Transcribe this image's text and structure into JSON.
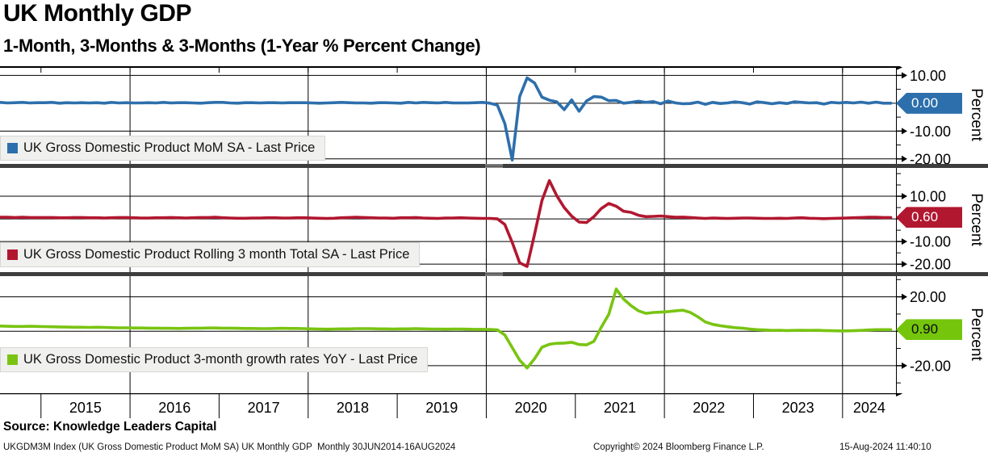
{
  "header": {
    "title": "UK Monthly GDP",
    "subtitle": "1-Month, 3-Months & 3-Months (1-Year % Percent Change)"
  },
  "axis": {
    "unit_label": "Percent",
    "years": [
      2015,
      2016,
      2017,
      2018,
      2019,
      2020,
      2021,
      2022,
      2023,
      2024
    ],
    "gridline_years": [
      2016,
      2018,
      2020,
      2022,
      2024
    ],
    "x_start_decimal": 2014.54,
    "x_end_decimal": 2024.6,
    "range_note": "30JUN2014-16AUG2024"
  },
  "chart_data": [
    {
      "type": "line",
      "name": "mom",
      "legend": "UK Gross Domestic Product MoM SA - Last Price",
      "color": "#2d6fac",
      "badge": {
        "value": "0.00",
        "bg": "#2d6fac",
        "text_color": "#ffffff"
      },
      "ylim": [
        13.3,
        -21.8
      ],
      "yticks": [
        10,
        0,
        -10,
        -20
      ],
      "minor_step": 5,
      "ylabel": "Percent",
      "start": {
        "year": 2014,
        "month": 7
      },
      "values": [
        0.3,
        0.1,
        0.2,
        0.3,
        0.1,
        0.2,
        0.2,
        0.3,
        0.0,
        0.2,
        0.1,
        0.2,
        0.1,
        0.2,
        0.0,
        0.3,
        0.1,
        0.2,
        0.1,
        0.1,
        0.2,
        0.1,
        0.3,
        0.1,
        0.2,
        0.2,
        0.1,
        0.0,
        0.2,
        0.3,
        0.3,
        0.1,
        0.0,
        0.2,
        0.2,
        0.1,
        0.2,
        0.2,
        0.1,
        0.2,
        0.2,
        0.2,
        0.1,
        0.0,
        0.1,
        0.2,
        0.3,
        0.2,
        0.1,
        0.1,
        0.0,
        0.2,
        0.2,
        0.1,
        0.0,
        0.3,
        0.1,
        0.3,
        0.2,
        0.1,
        0.3,
        0.1,
        0.1,
        0.1,
        0.2,
        0.3,
        0.0,
        -0.7,
        -7.3,
        -20.4,
        2.4,
        9.1,
        7.3,
        2.2,
        1.1,
        0.5,
        -2.3,
        1.2,
        -2.9,
        0.8,
        2.4,
        2.2,
        0.9,
        1.0,
        0.0,
        0.3,
        0.7,
        0.3,
        0.6,
        -0.2,
        0.8,
        0.1,
        -0.2,
        -0.1,
        0.4,
        -0.4,
        0.3,
        -0.1,
        0.1,
        0.5,
        0.2,
        -0.3,
        0.5,
        0.2,
        -0.2,
        0.2,
        -0.1,
        0.5,
        0.3,
        0.1,
        0.2,
        -0.3,
        0.3,
        0.1,
        0.3,
        0.1,
        0.4,
        0.0,
        0.4,
        0.0,
        0.0
      ]
    },
    {
      "type": "line",
      "name": "rolling-3-month",
      "legend": "UK Gross Domestic Product Rolling 3 month Total SA - Last Price",
      "color": "#b21730",
      "badge": {
        "value": "0.60",
        "bg": "#b21730",
        "text_color": "#ffffff"
      },
      "ylim": [
        22.5,
        -23.5
      ],
      "yticks": [
        10,
        0,
        -10,
        -20
      ],
      "minor_step": 5,
      "ylabel": "Percent",
      "start": {
        "year": 2014,
        "month": 7
      },
      "values": [
        0.7,
        0.7,
        0.6,
        0.7,
        0.6,
        0.6,
        0.6,
        0.6,
        0.5,
        0.5,
        0.6,
        0.6,
        0.5,
        0.5,
        0.4,
        0.5,
        0.6,
        0.6,
        0.5,
        0.4,
        0.4,
        0.5,
        0.5,
        0.6,
        0.5,
        0.4,
        0.5,
        0.6,
        0.6,
        0.7,
        0.5,
        0.4,
        0.3,
        0.3,
        0.4,
        0.4,
        0.5,
        0.5,
        0.4,
        0.4,
        0.5,
        0.5,
        0.4,
        0.3,
        0.2,
        0.3,
        0.5,
        0.6,
        0.7,
        0.6,
        0.5,
        0.4,
        0.4,
        0.3,
        0.5,
        0.5,
        0.6,
        0.4,
        0.3,
        0.2,
        0.4,
        0.4,
        0.5,
        0.4,
        0.3,
        0.2,
        0.2,
        0.0,
        -2.5,
        -10.4,
        -19.4,
        -21.0,
        -6.9,
        8.1,
        16.9,
        10.2,
        5.0,
        1.2,
        -1.4,
        -1.6,
        1.0,
        4.6,
        6.8,
        5.6,
        3.4,
        2.9,
        1.6,
        1.0,
        1.1,
        1.3,
        1.0,
        0.7,
        0.8,
        0.6,
        0.4,
        0.2,
        0.4,
        0.3,
        0.2,
        0.3,
        0.4,
        0.4,
        0.3,
        0.2,
        0.2,
        0.3,
        0.2,
        0.4,
        0.5,
        0.3,
        0.2,
        0.1,
        0.2,
        0.3,
        0.4,
        0.5,
        0.6,
        0.7,
        0.7,
        0.6,
        0.6
      ]
    },
    {
      "type": "line",
      "name": "3-month-growth-yoy",
      "legend": "UK Gross Domestic Product 3-month growth rates YoY - Last Price",
      "color": "#79c412",
      "badge": {
        "value": "0.90",
        "bg": "#74c50c",
        "text_color": "#0a0a0a"
      },
      "ylim": [
        32,
        -36
      ],
      "yticks": [
        20,
        0,
        -20
      ],
      "minor_step": 10,
      "ylabel": "Percent",
      "start": {
        "year": 2014,
        "month": 7
      },
      "values": [
        3.0,
        2.9,
        2.8,
        2.8,
        2.9,
        2.8,
        2.7,
        2.6,
        2.5,
        2.4,
        2.3,
        2.3,
        2.2,
        2.3,
        2.2,
        2.1,
        2.0,
        2.0,
        1.9,
        1.9,
        1.8,
        1.8,
        1.7,
        1.7,
        1.6,
        1.7,
        1.8,
        1.8,
        1.9,
        1.9,
        1.8,
        1.8,
        1.7,
        1.6,
        1.6,
        1.5,
        1.5,
        1.6,
        1.7,
        1.6,
        1.6,
        1.5,
        1.4,
        1.3,
        1.2,
        1.3,
        1.4,
        1.4,
        1.5,
        1.5,
        1.5,
        1.4,
        1.4,
        1.3,
        1.4,
        1.4,
        1.5,
        1.4,
        1.3,
        1.3,
        1.2,
        1.3,
        1.3,
        1.2,
        1.1,
        1.1,
        1.0,
        0.8,
        -2.2,
        -9.5,
        -16.8,
        -21.3,
        -16.0,
        -9.3,
        -7.6,
        -7.0,
        -6.9,
        -6.4,
        -7.7,
        -7.9,
        -5.9,
        2.4,
        9.8,
        24.5,
        18.7,
        14.9,
        11.9,
        10.4,
        10.9,
        11.1,
        11.4,
        11.9,
        12.2,
        10.9,
        8.4,
        5.4,
        4.0,
        3.2,
        2.6,
        2.1,
        1.8,
        1.3,
        0.9,
        0.7,
        0.5,
        0.6,
        0.4,
        0.5,
        0.6,
        0.5,
        0.6,
        0.4,
        0.3,
        0.2,
        0.2,
        0.3,
        0.5,
        0.7,
        0.9,
        0.9,
        0.9
      ]
    }
  ],
  "source_line": "Source: Knowledge Leaders Capital",
  "footer": {
    "left": "UKGDM3M Index (UK Gross Domestic Product MoM SA) UK Monthly GDP  Monthly 30JUN2014-16AUG2024",
    "center": "Copyright© 2024 Bloomberg Finance L.P.",
    "right": "15-Aug-2024 11:40:10"
  }
}
